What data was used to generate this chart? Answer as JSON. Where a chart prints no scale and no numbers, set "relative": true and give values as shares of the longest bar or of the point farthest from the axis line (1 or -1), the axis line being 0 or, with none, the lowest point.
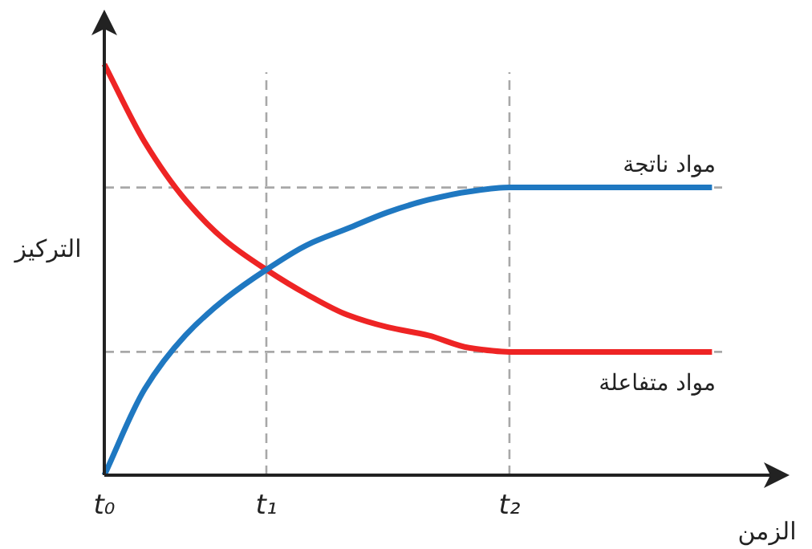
{
  "chart_data": {
    "type": "line",
    "relative": true,
    "xlabel": "الزمن",
    "ylabel": "التركيز",
    "categories": [
      "t₀",
      null,
      null,
      null,
      "t₁",
      null,
      null,
      null,
      null,
      null,
      "t₂",
      null,
      null,
      null,
      null,
      null
    ],
    "series": [
      {
        "color": "#ee2424",
        "values": [
          1,
          0.81,
          0.67,
          0.57,
          0.5,
          0.44,
          0.39,
          0.36,
          0.34,
          0.31,
          0.3,
          0.3,
          0.3,
          0.3,
          0.3,
          0.3
        ]
      },
      {
        "color": "#1f78c1",
        "values": [
          0,
          0.21,
          0.34,
          0.43,
          0.5,
          0.56,
          0.6,
          0.64,
          0.67,
          0.69,
          0.7,
          0.7,
          0.7,
          0.7,
          0.7,
          0.7
        ]
      }
    ],
    "ref_lines": [
      {
        "axis": "y",
        "value": 0.7,
        "label": "مواد ناتجة",
        "color": "#a8a8a8",
        "line_style": "dashed"
      },
      {
        "axis": "y",
        "value": 0.3,
        "label": "مواد متفاعلة",
        "color": "#a8a8a8",
        "line_style": "dashed"
      }
    ],
    "grid": "x",
    "legend": false,
    "marker": "none",
    "line_style": "solid"
  }
}
